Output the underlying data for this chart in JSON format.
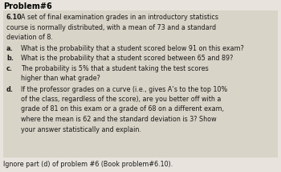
{
  "title": "Problem#6",
  "problem_number": "6.10",
  "bg_color": "#ede9e2",
  "box_color": "#d9d4c8",
  "outer_bg": "#e8e4dd",
  "text_color": "#1a1a1a",
  "title_color": "#000000",
  "footer": "Ignore part (d) of problem #6 (Book problem#6.10).",
  "intro_line1": "A set of final examination grades in an introductory statistics",
  "intro_line2": "course is normally distributed, with a mean of 73 and a standard",
  "intro_line3": "deviation of 8.",
  "a_text": "What is the probability that a student scored below 91 on this exam?",
  "b_text": "What is the probability that a student scored between 65 and 89?",
  "c_text1": "The probability is 5% that a student taking the test scores",
  "c_text2": "higher than what grade?",
  "d_text1": "If the professor grades on a curve (i.e., gives A’s to the top 10%",
  "d_text2": "of the class, regardless of the score), are you better off with a",
  "d_text3": "grade of 81 on this exam or a grade of 68 on a different exam,",
  "d_text4": "where the mean is 62 and the standard deviation is 3? Show",
  "d_text5": "your answer statistically and explain.",
  "font_size": 5.8,
  "title_font_size": 7.0
}
